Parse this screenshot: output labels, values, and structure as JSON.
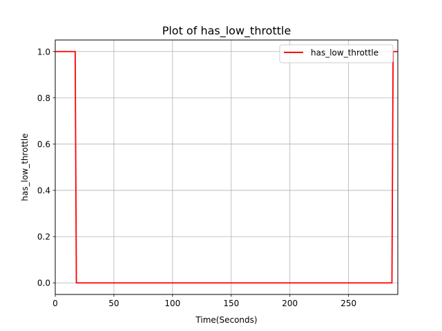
{
  "chart_data": {
    "type": "line",
    "title": "Plot of has_low_throttle",
    "xlabel": "Time(Seconds)",
    "ylabel": "has_low_throttle",
    "xlim": [
      0,
      292
    ],
    "ylim": [
      -0.05,
      1.05
    ],
    "xticks": [
      0,
      50,
      100,
      150,
      200,
      250
    ],
    "yticks": [
      0.0,
      0.2,
      0.4,
      0.6,
      0.8,
      1.0
    ],
    "xtick_labels": [
      "0",
      "50",
      "100",
      "150",
      "200",
      "250"
    ],
    "ytick_labels": [
      "0.0",
      "0.2",
      "0.4",
      "0.6",
      "0.8",
      "1.0"
    ],
    "grid": true,
    "legend_position": "top-right",
    "series": [
      {
        "name": "has_low_throttle",
        "color": "#ff0000",
        "x": [
          0,
          17,
          18,
          287,
          288,
          292
        ],
        "y": [
          1,
          1,
          0,
          0,
          1,
          1
        ]
      }
    ]
  }
}
